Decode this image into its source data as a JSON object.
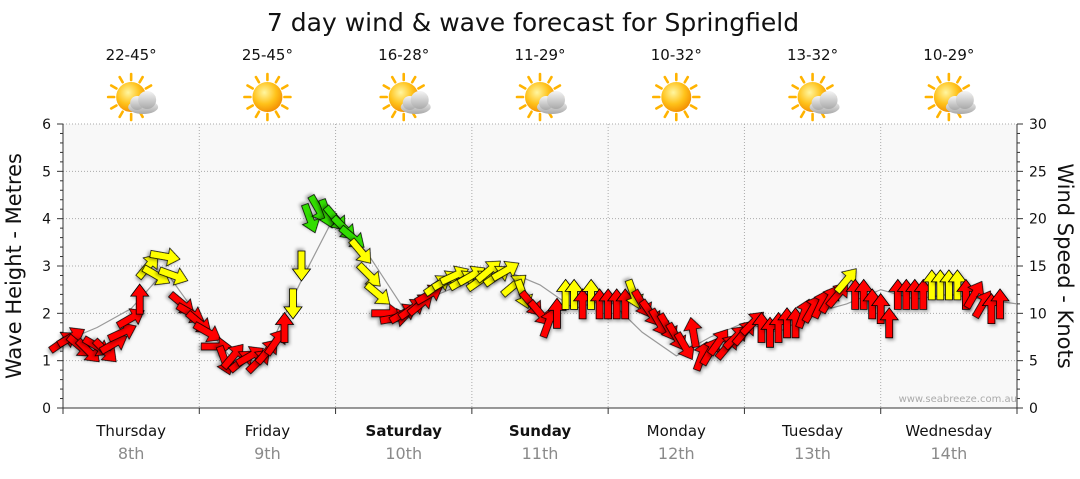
{
  "chart_data": {
    "type": "scatter",
    "title": "7 day wind & wave forecast for Springfield",
    "ylabel_left": "Wave Height - Metres",
    "ylabel_right": "Wind Speed - Knots",
    "ylim_left": [
      0,
      6
    ],
    "ylim_right": [
      0,
      30
    ],
    "yticks_left": [
      "0",
      "1",
      "2",
      "3",
      "4",
      "5",
      "6"
    ],
    "yticks_right": [
      "0",
      "5",
      "10",
      "15",
      "20",
      "25",
      "30"
    ],
    "grid": true,
    "watermark": "www.seabreeze.com.au",
    "colors": {
      "red": "#ff0000",
      "yellow": "#ffff00",
      "green": "#33dd00",
      "wave_line": "#999999",
      "grid": "#aaaaaa",
      "plot_bg": "#f8f8f8"
    },
    "days": [
      {
        "day": "Thursday",
        "date": "8th",
        "temp": "22-45°",
        "icon": "sun-cloud-icon",
        "bold": false
      },
      {
        "day": "Friday",
        "date": "9th",
        "temp": "25-45°",
        "icon": "sun-icon",
        "bold": false
      },
      {
        "day": "Saturday",
        "date": "10th",
        "temp": "16-28°",
        "icon": "sun-cloud-icon",
        "bold": true
      },
      {
        "day": "Sunday",
        "date": "11th",
        "temp": "11-29°",
        "icon": "sun-cloud-icon",
        "bold": true
      },
      {
        "day": "Monday",
        "date": "12th",
        "temp": "10-32°",
        "icon": "sun-icon",
        "bold": false
      },
      {
        "day": "Tuesday",
        "date": "13th",
        "temp": "13-32°",
        "icon": "sun-cloud-icon",
        "bold": false
      },
      {
        "day": "Wednesday",
        "date": "14th",
        "temp": "10-29°",
        "icon": "sun-cloud-icon",
        "bold": false
      }
    ],
    "x_units": "hours from start of Thursday 8th",
    "x_max": 168,
    "wave_series": {
      "name": "Wave Height",
      "x": [
        0,
        6,
        12,
        18,
        24,
        30,
        36,
        42,
        48,
        54,
        60,
        66,
        72,
        78,
        84,
        90,
        96,
        102,
        108,
        114,
        120,
        126,
        132,
        138,
        144,
        150,
        156,
        162,
        168
      ],
      "y": [
        1.4,
        1.7,
        2.1,
        2.9,
        1.9,
        1.0,
        1.2,
        2.7,
        4.1,
        3.2,
        2.1,
        2.4,
        2.7,
        2.9,
        2.6,
        2.1,
        2.3,
        1.6,
        1.1,
        1.5,
        1.8,
        1.6,
        2.0,
        2.2,
        2.5,
        2.3,
        2.4,
        2.3,
        2.2
      ]
    },
    "wind_series": {
      "name": "Wind Speed",
      "points": [
        {
          "x": 0,
          "y": 7,
          "dir": 55,
          "c": "red"
        },
        {
          "x": 1.5,
          "y": 7.5,
          "dir": 60,
          "c": "red"
        },
        {
          "x": 3,
          "y": 6.5,
          "dir": 130,
          "c": "red"
        },
        {
          "x": 4.5,
          "y": 6,
          "dir": 135,
          "c": "red"
        },
        {
          "x": 6,
          "y": 6.5,
          "dir": 120,
          "c": "red"
        },
        {
          "x": 7.5,
          "y": 6,
          "dir": 135,
          "c": "red"
        },
        {
          "x": 9,
          "y": 6.8,
          "dir": 60,
          "c": "red"
        },
        {
          "x": 10.5,
          "y": 8,
          "dir": 65,
          "c": "red"
        },
        {
          "x": 12,
          "y": 9.5,
          "dir": 60,
          "c": "red"
        },
        {
          "x": 13.5,
          "y": 11.5,
          "dir": 0,
          "c": "red"
        },
        {
          "x": 15,
          "y": 15,
          "dir": 40,
          "c": "yellow"
        },
        {
          "x": 16.5,
          "y": 14,
          "dir": 120,
          "c": "yellow"
        },
        {
          "x": 18,
          "y": 16,
          "dir": 100,
          "c": "yellow"
        },
        {
          "x": 19.5,
          "y": 14,
          "dir": 110,
          "c": "yellow"
        },
        {
          "x": 21,
          "y": 11,
          "dir": 130,
          "c": "red"
        },
        {
          "x": 22.5,
          "y": 10,
          "dir": 120,
          "c": "red"
        },
        {
          "x": 24,
          "y": 9,
          "dir": 130,
          "c": "red"
        },
        {
          "x": 25.5,
          "y": 8,
          "dir": 120,
          "c": "red"
        },
        {
          "x": 27,
          "y": 6.5,
          "dir": 90,
          "c": "red"
        },
        {
          "x": 28.5,
          "y": 5,
          "dir": 160,
          "c": "red"
        },
        {
          "x": 30,
          "y": 5.5,
          "dir": 40,
          "c": "red"
        },
        {
          "x": 31.5,
          "y": 5,
          "dir": 50,
          "c": "red"
        },
        {
          "x": 33,
          "y": 5.5,
          "dir": 60,
          "c": "red"
        },
        {
          "x": 34.5,
          "y": 5,
          "dir": 45,
          "c": "red"
        },
        {
          "x": 36,
          "y": 6,
          "dir": 40,
          "c": "red"
        },
        {
          "x": 37.5,
          "y": 7,
          "dir": 35,
          "c": "red"
        },
        {
          "x": 39,
          "y": 8.5,
          "dir": 0,
          "c": "red"
        },
        {
          "x": 40.5,
          "y": 11,
          "dir": 180,
          "c": "yellow"
        },
        {
          "x": 42,
          "y": 15,
          "dir": 180,
          "c": "yellow"
        },
        {
          "x": 43.5,
          "y": 20,
          "dir": 160,
          "c": "green"
        },
        {
          "x": 45,
          "y": 21,
          "dir": 150,
          "c": "green"
        },
        {
          "x": 46.5,
          "y": 20.5,
          "dir": 160,
          "c": "green"
        },
        {
          "x": 48,
          "y": 20,
          "dir": 140,
          "c": "green"
        },
        {
          "x": 49.5,
          "y": 19,
          "dir": 135,
          "c": "green"
        },
        {
          "x": 51,
          "y": 18,
          "dir": 130,
          "c": "green"
        },
        {
          "x": 52.5,
          "y": 16.5,
          "dir": 140,
          "c": "yellow"
        },
        {
          "x": 54,
          "y": 14,
          "dir": 135,
          "c": "yellow"
        },
        {
          "x": 55.5,
          "y": 12,
          "dir": 130,
          "c": "yellow"
        },
        {
          "x": 57,
          "y": 10,
          "dir": 90,
          "c": "red"
        },
        {
          "x": 58.5,
          "y": 9.5,
          "dir": 80,
          "c": "red"
        },
        {
          "x": 60,
          "y": 10,
          "dir": 60,
          "c": "red"
        },
        {
          "x": 61.5,
          "y": 10.5,
          "dir": 55,
          "c": "red"
        },
        {
          "x": 63,
          "y": 11,
          "dir": 50,
          "c": "red"
        },
        {
          "x": 64.5,
          "y": 12,
          "dir": 60,
          "c": "red"
        },
        {
          "x": 66,
          "y": 13,
          "dir": 55,
          "c": "yellow"
        },
        {
          "x": 67.5,
          "y": 13.5,
          "dir": 60,
          "c": "yellow"
        },
        {
          "x": 69,
          "y": 14,
          "dir": 65,
          "c": "yellow"
        },
        {
          "x": 70.5,
          "y": 13.5,
          "dir": 60,
          "c": "yellow"
        },
        {
          "x": 72,
          "y": 14,
          "dir": 60,
          "c": "yellow"
        },
        {
          "x": 73.5,
          "y": 13.5,
          "dir": 55,
          "c": "yellow"
        },
        {
          "x": 75,
          "y": 14.5,
          "dir": 50,
          "c": "yellow"
        },
        {
          "x": 76.5,
          "y": 14,
          "dir": 55,
          "c": "yellow"
        },
        {
          "x": 78,
          "y": 14.5,
          "dir": 60,
          "c": "yellow"
        },
        {
          "x": 79.5,
          "y": 13,
          "dir": 50,
          "c": "yellow"
        },
        {
          "x": 81,
          "y": 12,
          "dir": 160,
          "c": "yellow"
        },
        {
          "x": 82.5,
          "y": 11,
          "dir": 140,
          "c": "red"
        },
        {
          "x": 84,
          "y": 10,
          "dir": 140,
          "c": "red"
        },
        {
          "x": 85.5,
          "y": 9,
          "dir": 20,
          "c": "red"
        },
        {
          "x": 87,
          "y": 10,
          "dir": 0,
          "c": "red"
        },
        {
          "x": 88.5,
          "y": 12,
          "dir": 0,
          "c": "yellow"
        },
        {
          "x": 90,
          "y": 12,
          "dir": 0,
          "c": "yellow"
        },
        {
          "x": 91.5,
          "y": 11,
          "dir": 0,
          "c": "red"
        },
        {
          "x": 93,
          "y": 12,
          "dir": 0,
          "c": "yellow"
        },
        {
          "x": 94.5,
          "y": 11,
          "dir": 0,
          "c": "red"
        },
        {
          "x": 96,
          "y": 11,
          "dir": 0,
          "c": "red"
        },
        {
          "x": 97.5,
          "y": 11,
          "dir": 0,
          "c": "red"
        },
        {
          "x": 99,
          "y": 11,
          "dir": 0,
          "c": "red"
        },
        {
          "x": 100.5,
          "y": 12,
          "dir": 160,
          "c": "yellow"
        },
        {
          "x": 102,
          "y": 11,
          "dir": 150,
          "c": "red"
        },
        {
          "x": 103.5,
          "y": 10,
          "dir": 145,
          "c": "red"
        },
        {
          "x": 105,
          "y": 9,
          "dir": 150,
          "c": "red"
        },
        {
          "x": 106.5,
          "y": 8.5,
          "dir": 150,
          "c": "red"
        },
        {
          "x": 108,
          "y": 7.5,
          "dir": 150,
          "c": "red"
        },
        {
          "x": 109.5,
          "y": 6.5,
          "dir": 150,
          "c": "red"
        },
        {
          "x": 111,
          "y": 8,
          "dir": 350,
          "c": "red"
        },
        {
          "x": 112.5,
          "y": 5.5,
          "dir": 20,
          "c": "red"
        },
        {
          "x": 114,
          "y": 6,
          "dir": 30,
          "c": "red"
        },
        {
          "x": 115.5,
          "y": 7,
          "dir": 35,
          "c": "red"
        },
        {
          "x": 117,
          "y": 6.5,
          "dir": 40,
          "c": "red"
        },
        {
          "x": 118.5,
          "y": 7.5,
          "dir": 45,
          "c": "red"
        },
        {
          "x": 120,
          "y": 8,
          "dir": 40,
          "c": "red"
        },
        {
          "x": 121.5,
          "y": 9,
          "dir": 45,
          "c": "red"
        },
        {
          "x": 123,
          "y": 8.5,
          "dir": 0,
          "c": "red"
        },
        {
          "x": 124.5,
          "y": 8,
          "dir": 0,
          "c": "red"
        },
        {
          "x": 126,
          "y": 8.5,
          "dir": 0,
          "c": "red"
        },
        {
          "x": 127.5,
          "y": 9,
          "dir": 0,
          "c": "red"
        },
        {
          "x": 129,
          "y": 9,
          "dir": 0,
          "c": "red"
        },
        {
          "x": 130.5,
          "y": 10,
          "dir": 20,
          "c": "red"
        },
        {
          "x": 132,
          "y": 10.5,
          "dir": 30,
          "c": "red"
        },
        {
          "x": 133.5,
          "y": 11,
          "dir": 25,
          "c": "red"
        },
        {
          "x": 135,
          "y": 11.5,
          "dir": 30,
          "c": "red"
        },
        {
          "x": 136.5,
          "y": 12,
          "dir": 40,
          "c": "red"
        },
        {
          "x": 138,
          "y": 13.5,
          "dir": 40,
          "c": "yellow"
        },
        {
          "x": 139.5,
          "y": 12,
          "dir": 0,
          "c": "red"
        },
        {
          "x": 141,
          "y": 12,
          "dir": 0,
          "c": "red"
        },
        {
          "x": 142.5,
          "y": 11,
          "dir": 0,
          "c": "red"
        },
        {
          "x": 144,
          "y": 10.5,
          "dir": 0,
          "c": "red"
        },
        {
          "x": 145.5,
          "y": 9,
          "dir": 0,
          "c": "red"
        },
        {
          "x": 147,
          "y": 12,
          "dir": 0,
          "c": "red"
        },
        {
          "x": 148.5,
          "y": 12,
          "dir": 0,
          "c": "red"
        },
        {
          "x": 150,
          "y": 12,
          "dir": 0,
          "c": "red"
        },
        {
          "x": 151.5,
          "y": 12,
          "dir": 0,
          "c": "red"
        },
        {
          "x": 153,
          "y": 13,
          "dir": 0,
          "c": "yellow"
        },
        {
          "x": 154.5,
          "y": 13,
          "dir": 0,
          "c": "yellow"
        },
        {
          "x": 156,
          "y": 13,
          "dir": 0,
          "c": "yellow"
        },
        {
          "x": 157.5,
          "y": 13,
          "dir": 0,
          "c": "yellow"
        },
        {
          "x": 159,
          "y": 12,
          "dir": 0,
          "c": "red"
        },
        {
          "x": 160.5,
          "y": 12,
          "dir": 30,
          "c": "red"
        },
        {
          "x": 162,
          "y": 11,
          "dir": 30,
          "c": "red"
        },
        {
          "x": 163.5,
          "y": 10.5,
          "dir": 0,
          "c": "red"
        },
        {
          "x": 165,
          "y": 11,
          "dir": 0,
          "c": "red"
        }
      ]
    }
  }
}
